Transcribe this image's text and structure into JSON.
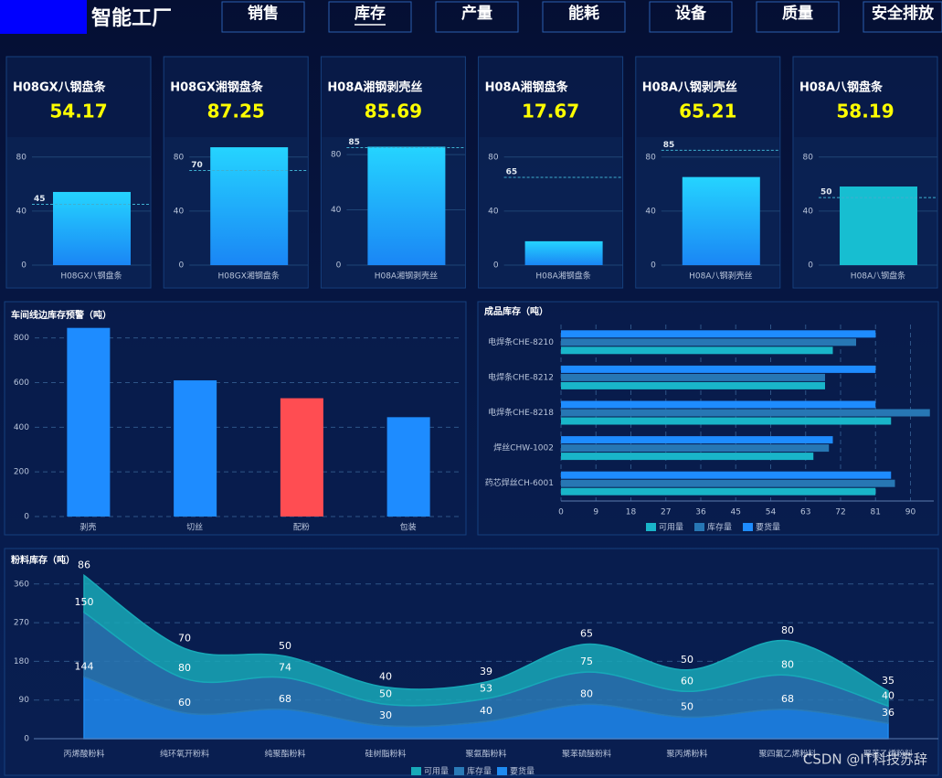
{
  "header": {
    "title": "智能工厂",
    "nav": [
      "销售",
      "库存",
      "产量",
      "能耗",
      "设备",
      "质量",
      "安全排放"
    ],
    "active": 1
  },
  "watermark": "CSDN @IT科技苏辞",
  "chart_data": [
    {
      "type": "gauge_bar",
      "title": "H08GX八钢盘条",
      "categories": [
        "H08GX八钢盘条"
      ],
      "values": [
        54.17
      ],
      "markline": 45,
      "color": [
        "#25d4ff",
        "#1a86f5"
      ],
      "ylim": [
        0,
        90
      ],
      "yticks": [
        0,
        40,
        80
      ],
      "grid": true
    },
    {
      "type": "gauge_bar",
      "title": "H08GX湘钢盘条",
      "categories": [
        "H08GX湘钢盘条"
      ],
      "values": [
        87.25
      ],
      "markline": 70,
      "color": [
        "#25d4ff",
        "#1a86f5"
      ],
      "ylim": [
        0,
        90
      ],
      "yticks": [
        0,
        40,
        80
      ],
      "grid": true
    },
    {
      "type": "gauge_bar",
      "title": "H08A湘钢剥壳丝",
      "categories": [
        "H08A湘钢剥壳丝"
      ],
      "values": [
        85.69
      ],
      "markline": 85,
      "color": [
        "#25d4ff",
        "#1a86f5"
      ],
      "ylim": [
        0,
        88
      ],
      "yticks": [
        0,
        40,
        80
      ],
      "grid": true
    },
    {
      "type": "gauge_bar",
      "title": "H08A湘钢盘条",
      "categories": [
        "H08A湘钢盘条"
      ],
      "values": [
        17.67
      ],
      "markline": 65,
      "color": [
        "#25d4ff",
        "#1a86f5"
      ],
      "ylim": [
        0,
        90
      ],
      "yticks": [
        0,
        40,
        80
      ],
      "grid": true
    },
    {
      "type": "gauge_bar",
      "title": "H08A八钢剥壳丝",
      "categories": [
        "H08A八钢剥壳丝"
      ],
      "values": [
        65.21
      ],
      "markline": 85,
      "color": [
        "#25d4ff",
        "#1a86f5"
      ],
      "ylim": [
        0,
        90
      ],
      "yticks": [
        0,
        40,
        80
      ],
      "grid": true
    },
    {
      "type": "gauge_bar",
      "title": "H08A八钢盘条",
      "categories": [
        "H08A八钢盘条"
      ],
      "values": [
        58.19
      ],
      "markline": 50,
      "color": "#17bed1",
      "ylim": [
        0,
        90
      ],
      "yticks": [
        0,
        40,
        80
      ],
      "grid": true
    },
    {
      "type": "bar",
      "title": "车间线边库存预警（吨）",
      "categories": [
        "剥壳",
        "切丝",
        "配粉",
        "包装"
      ],
      "values": [
        845,
        610,
        530,
        445
      ],
      "colors": [
        "#1e8cff",
        "#1e8cff",
        "#ff4d52",
        "#1e8cff"
      ],
      "ylim": [
        0,
        860
      ],
      "yticks": [
        0,
        200,
        400,
        600,
        800
      ],
      "grid": true
    },
    {
      "type": "hbar",
      "title": "成品库存（吨）",
      "categories": [
        "药芯焊丝CH-6001",
        "焊丝CHW-1002",
        "电焊条CHE-8218",
        "电焊条CHE-8212",
        "电焊条CHE-8210"
      ],
      "series": [
        {
          "name": "可用量",
          "color": "#19b5c9",
          "values": [
            81,
            65,
            85,
            68,
            70
          ]
        },
        {
          "name": "库存量",
          "color": "#2777b4",
          "values": [
            86,
            69,
            95,
            68,
            76
          ]
        },
        {
          "name": "要货量",
          "color": "#1e8cff",
          "values": [
            85,
            70,
            81,
            81,
            81
          ]
        }
      ],
      "xlim": [
        0,
        96
      ],
      "xticks": [
        0,
        9,
        18,
        27,
        36,
        45,
        54,
        63,
        72,
        81,
        90
      ],
      "grid": true
    },
    {
      "type": "stacked_area",
      "title": "粉料库存（吨）",
      "categories": [
        "丙烯酸粉料",
        "纯环氧开粉料",
        "纯聚酯粉料",
        "硅树脂粉料",
        "聚氨酯粉料",
        "聚苯硫醚粉料",
        "聚丙烯粉料",
        "聚四氟乙烯粉料",
        "聚苯乙烯粉料"
      ],
      "series": [
        {
          "name": "可用量",
          "color": "#17a9b8",
          "values": [
            86,
            70,
            50,
            40,
            39,
            65,
            50,
            80,
            35
          ]
        },
        {
          "name": "库存量",
          "color": "#2a7ab6",
          "values": [
            150,
            80,
            74,
            50,
            53,
            75,
            60,
            80,
            40
          ]
        },
        {
          "name": "要货量",
          "color": "#1e8af0",
          "values": [
            144,
            60,
            68,
            30,
            40,
            80,
            50,
            68,
            36
          ]
        }
      ],
      "ylim": [
        0,
        400
      ],
      "yticks": [
        0,
        90,
        180,
        270,
        360
      ],
      "grid": true
    }
  ]
}
